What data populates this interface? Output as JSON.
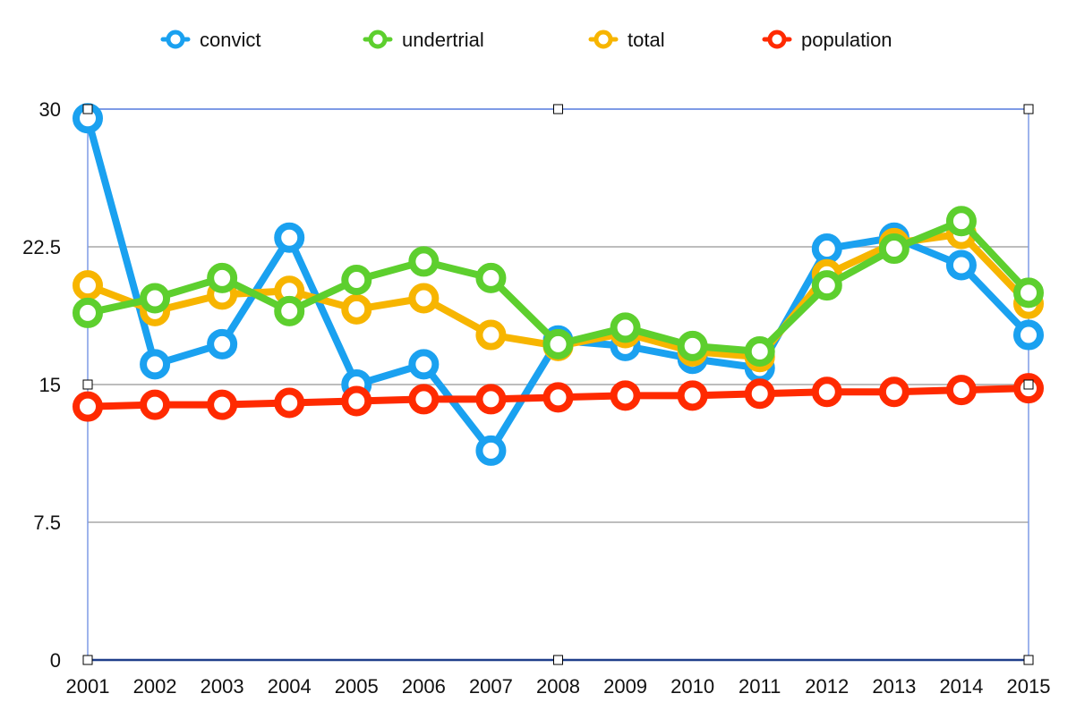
{
  "chart_data": {
    "type": "line",
    "title": "",
    "xlabel": "",
    "ylabel": "",
    "categories": [
      "2001",
      "2002",
      "2003",
      "2004",
      "2005",
      "2006",
      "2007",
      "2008",
      "2009",
      "2010",
      "2011",
      "2012",
      "2013",
      "2014",
      "2015"
    ],
    "y_ticks": [
      "0",
      "7.5",
      "15",
      "22.5",
      "30"
    ],
    "ylim": [
      0,
      30
    ],
    "grid": true,
    "legend_position": "top",
    "series": [
      {
        "name": "convict",
        "color": "#1aa1f0",
        "values": [
          29.5,
          16.1,
          17.2,
          23.0,
          15.0,
          16.1,
          11.4,
          17.4,
          17.1,
          16.4,
          15.9,
          22.4,
          23.0,
          21.5,
          17.7
        ]
      },
      {
        "name": "undertrial",
        "color": "#5dcf2e",
        "values": [
          18.9,
          19.7,
          20.8,
          19.0,
          20.7,
          21.7,
          20.8,
          17.2,
          18.1,
          17.1,
          16.8,
          20.4,
          22.4,
          23.9,
          20.0
        ]
      },
      {
        "name": "total",
        "color": "#f7b500",
        "values": [
          20.4,
          19.0,
          19.9,
          20.1,
          19.1,
          19.7,
          17.7,
          17.1,
          17.8,
          16.8,
          16.5,
          21.0,
          22.7,
          23.2,
          19.4
        ]
      },
      {
        "name": "population",
        "color": "#ff2a00",
        "values": [
          13.8,
          13.9,
          13.9,
          14.0,
          14.1,
          14.2,
          14.2,
          14.3,
          14.4,
          14.4,
          14.5,
          14.6,
          14.6,
          14.7,
          14.8
        ]
      }
    ]
  }
}
